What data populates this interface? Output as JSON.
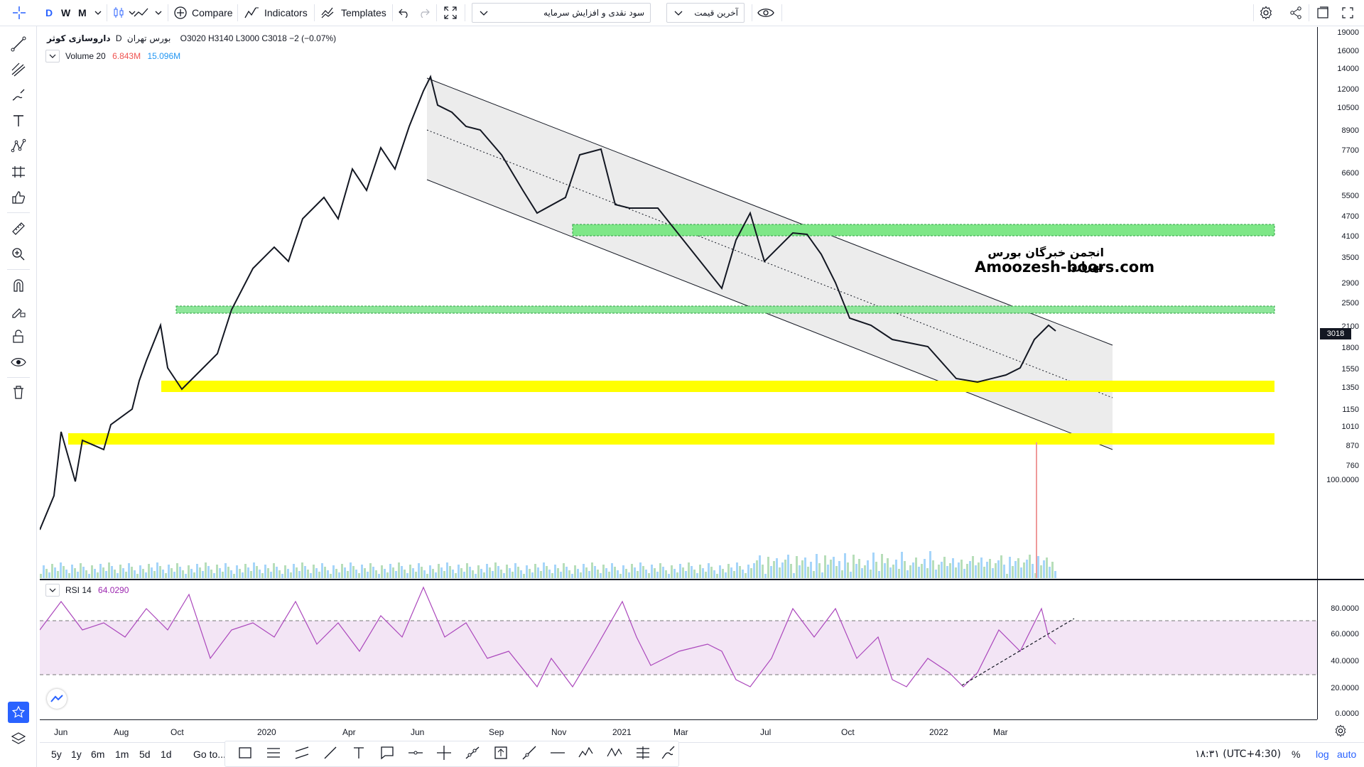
{
  "topbar": {
    "intervals": [
      "D",
      "W",
      "M"
    ],
    "compare_label": "Compare",
    "indicators_label": "Indicators",
    "templates_label": "Templates",
    "select_main": "سود نقدی و افزایش سرمایه",
    "select_price": "آخرین قیمت"
  },
  "legend": {
    "symbol": "داروسازی کوثر",
    "interval": "D",
    "exchange": "بورس تهران",
    "ohlc": "O3020  H3140  L3000  C3018  −2 (−0.07%)",
    "volume_name": "Volume 20",
    "volume_value": "6.843M",
    "volume_ma": "15.096M",
    "rsi_name": "RSI 14",
    "rsi_value": "64.0290"
  },
  "watermark": {
    "line1": "انجمن خبرگان بورس تهران",
    "line2": "Amoozesh-boors.com"
  },
  "price_axis": [
    "19000",
    "16000",
    "14000",
    "12000",
    "10500",
    "8900",
    "7700",
    "6600",
    "5500",
    "4700",
    "4100",
    "3500",
    "2900",
    "2500",
    "2100",
    "1800",
    "1550",
    "1350",
    "1150",
    "1010",
    "870",
    "760",
    "100.0000"
  ],
  "last_price": "3018",
  "rsi_axis": [
    "80.0000",
    "60.0000",
    "40.0000",
    "20.0000",
    "0.0000"
  ],
  "time_axis": [
    "Jun",
    "Aug",
    "Oct",
    "2020",
    "Apr",
    "Jun",
    "Sep",
    "Nov",
    "2021",
    "Mar",
    "Jul",
    "Oct",
    "2022",
    "Mar"
  ],
  "bottombar": {
    "ranges": [
      "5y",
      "1y",
      "6m",
      "1m",
      "5d",
      "1d"
    ],
    "goto": "Go to...",
    "clock": "۱۸:۳۱ (UTC+4:30)",
    "pct": "%",
    "log": "log",
    "auto": "auto"
  },
  "colors": {
    "green_zone": "#7ee787",
    "yellow_zone": "#ffff00",
    "channel_fill": "#ececec",
    "rsi_line": "#9c27b0",
    "rsi_band": "#f3e5f5",
    "volume": "#90caf9"
  }
}
